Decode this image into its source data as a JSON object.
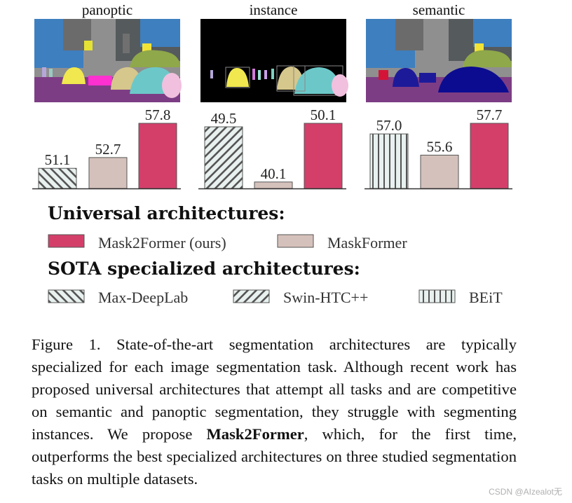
{
  "chart_data": [
    {
      "type": "bar",
      "title": "panoptic",
      "categories": [
        "Max-DeepLab",
        "MaskFormer",
        "Mask2Former (ours)"
      ],
      "values": [
        51.1,
        52.7,
        57.8
      ],
      "labels": [
        "51.1",
        "52.7",
        "57.8"
      ],
      "patterns": [
        "diag-back",
        "solid-mf",
        "solid-m2f"
      ],
      "ylim": [
        48.1,
        57.8
      ]
    },
    {
      "type": "bar",
      "title": "instance",
      "categories": [
        "Swin-HTC++",
        "MaskFormer",
        "Mask2Former (ours)"
      ],
      "values": [
        49.5,
        40.1,
        50.1
      ],
      "labels": [
        "49.5",
        "40.1",
        "50.1"
      ],
      "patterns": [
        "diag-fwd",
        "solid-mf",
        "solid-m2f"
      ],
      "ylim": [
        39.0,
        50.1
      ]
    },
    {
      "type": "bar",
      "title": "semantic",
      "categories": [
        "BEiT",
        "MaskFormer",
        "Mask2Former (ours)"
      ],
      "values": [
        57.0,
        55.6,
        57.7
      ],
      "labels": [
        "57.0",
        "55.6",
        "57.7"
      ],
      "patterns": [
        "vert",
        "solid-mf",
        "solid-m2f"
      ],
      "ylim": [
        53.4,
        57.7
      ]
    }
  ],
  "legend": {
    "universal_heading": "Universal architectures:",
    "universal_items": [
      {
        "label": "Mask2Former (ours)",
        "pattern": "solid-m2f"
      },
      {
        "label": "MaskFormer",
        "pattern": "solid-mf"
      }
    ],
    "sota_heading": "SOTA specialized architectures:",
    "sota_items": [
      {
        "label": "Max-DeepLab",
        "pattern": "diag-back"
      },
      {
        "label": "Swin-HTC++",
        "pattern": "diag-fwd"
      },
      {
        "label": "BEiT",
        "pattern": "vert"
      }
    ]
  },
  "colors": {
    "mask2former": "#d43f6a",
    "maskformer": "#d5c1bb",
    "hatch_bg": "#e8f1ef",
    "hatch_line": "#555555"
  },
  "caption": {
    "prefix": "Figure 1. State-of-the-art segmentation architectures are typically specialized for each image segmentation task.  Although recent work has proposed universal architectures that attempt all tasks and are competitive on semantic and panoptic segmentation, they struggle with segmenting instances. We propose ",
    "bold": "Mask2Former",
    "suffix": ", which, for the first time, outperforms the best specialized architectures on three studied segmentation tasks on multiple datasets."
  },
  "watermark": "CSDN @AIzealot无"
}
